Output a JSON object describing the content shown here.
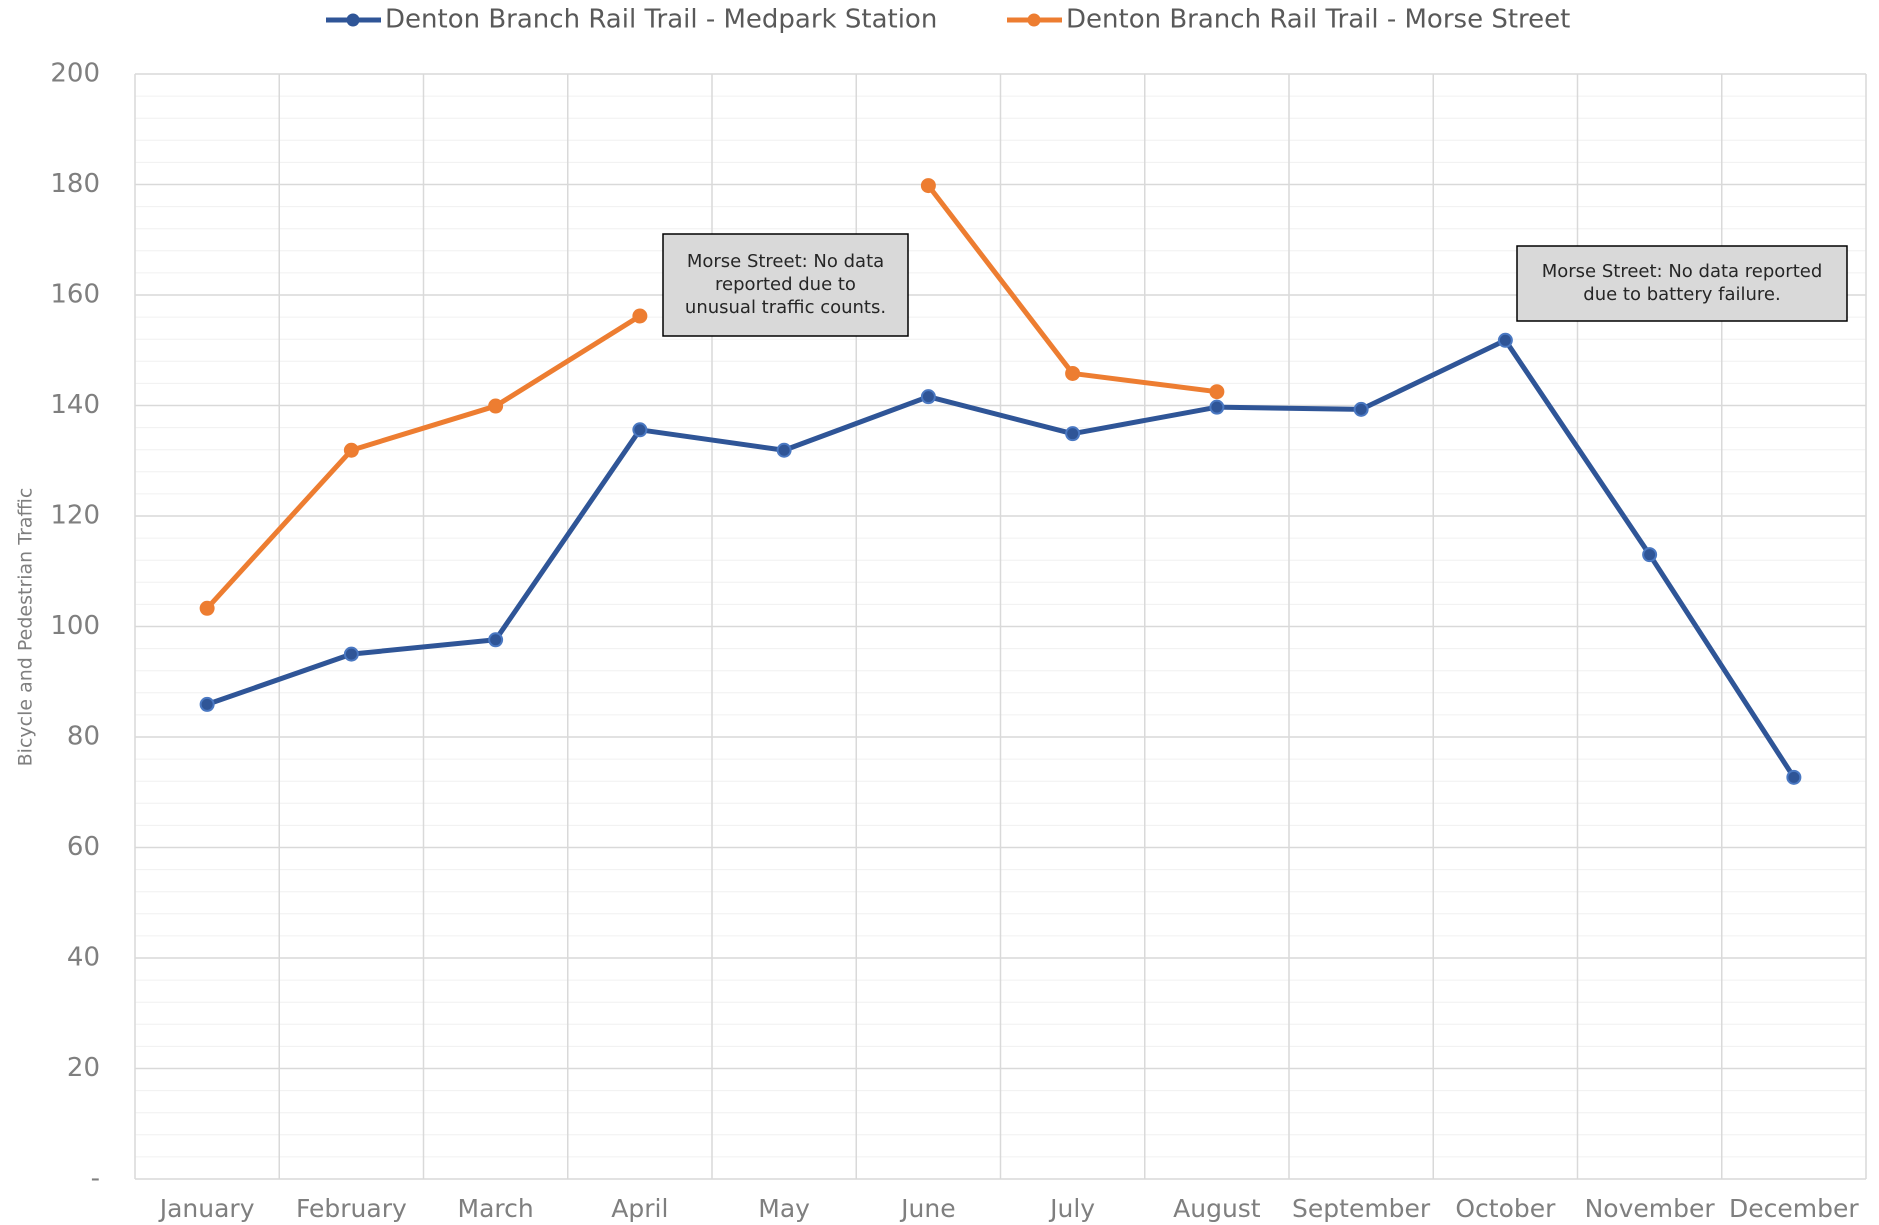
{
  "chart_data": {
    "type": "line",
    "y_label": "Bicycle and Pedestrian Traffic",
    "categories": [
      "January",
      "February",
      "March",
      "April",
      "May",
      "June",
      "July",
      "August",
      "September",
      "October",
      "November",
      "December"
    ],
    "series": [
      {
        "name": "Denton Branch Rail Trail - Medpark Station",
        "color": "#2f5597",
        "values": [
          85.9,
          95.0,
          97.6,
          135.6,
          131.9,
          141.6,
          134.9,
          139.7,
          139.3,
          151.8,
          113.0,
          72.7
        ]
      },
      {
        "name": "Denton Branch Rail Trail - Morse Street",
        "color": "#ed7d31",
        "values": [
          103.3,
          131.9,
          139.9,
          156.2,
          null,
          179.8,
          145.8,
          142.5,
          null,
          null,
          null,
          null
        ]
      }
    ],
    "ylim": [
      0,
      200
    ],
    "yticks": [
      {
        "value": 0,
        "label": "-"
      },
      20,
      40,
      60,
      80,
      100,
      120,
      140,
      160,
      180,
      200
    ],
    "grid": true,
    "legend": "top",
    "annotations": [
      {
        "lines": [
          "Morse Street: No data",
          "reported due to",
          "unusual traffic counts."
        ]
      },
      {
        "lines": [
          "Morse Street: No data reported",
          "due to battery failure."
        ]
      }
    ]
  }
}
